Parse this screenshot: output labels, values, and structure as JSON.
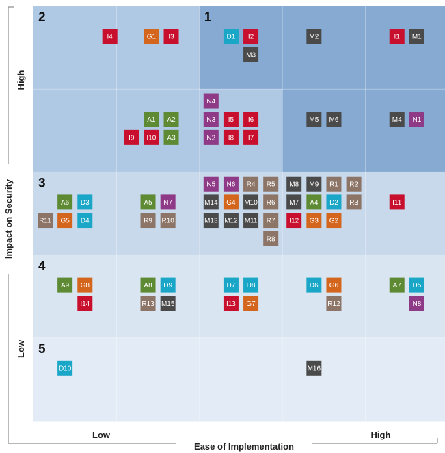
{
  "chart_data": {
    "type": "table",
    "x_axis": {
      "title": "Ease of Implementation",
      "low_label": "Low",
      "high_label": "High"
    },
    "y_axis": {
      "title": "Impact on Security",
      "low_label": "Low",
      "high_label": "High"
    },
    "zones": [
      {
        "label": "1",
        "row": 0,
        "col": 2
      },
      {
        "label": "2",
        "row": 0,
        "col": 0
      },
      {
        "label": "3",
        "row": 2,
        "col": 0
      },
      {
        "label": "4",
        "row": 3,
        "col": 0
      },
      {
        "label": "5",
        "row": 4,
        "col": 0
      }
    ],
    "category_colors": {
      "I": "#c8102e",
      "G": "#d4651c",
      "D": "#1aa6c6",
      "M": "#4a4a4a",
      "N": "#8e3a86",
      "A": "#5e8a34",
      "R": "#8c7466"
    },
    "items": [
      {
        "label": "I4",
        "cat": "I",
        "row": 0,
        "col": 0.92
      },
      {
        "label": "G1",
        "cat": "G",
        "row": 0,
        "col": 1.42
      },
      {
        "label": "I3",
        "cat": "I",
        "row": 0,
        "col": 1.66
      },
      {
        "label": "D1",
        "cat": "D",
        "row": 0,
        "col": 2.38
      },
      {
        "label": "I2",
        "cat": "I",
        "row": 0,
        "col": 2.62
      },
      {
        "label": "M3",
        "cat": "M",
        "row": 0.22,
        "col": 2.62
      },
      {
        "label": "M2",
        "cat": "M",
        "row": 0,
        "col": 3.38
      },
      {
        "label": "I1",
        "cat": "I",
        "row": 0,
        "col": 4.38
      },
      {
        "label": "M1",
        "cat": "M",
        "row": 0,
        "col": 4.62
      },
      {
        "label": "N4",
        "cat": "N",
        "row": 0.78,
        "col": 2.14
      },
      {
        "label": "A1",
        "cat": "A",
        "row": 1.0,
        "col": 1.42
      },
      {
        "label": "A2",
        "cat": "A",
        "row": 1.0,
        "col": 1.66
      },
      {
        "label": "N3",
        "cat": "N",
        "row": 1.0,
        "col": 2.14
      },
      {
        "label": "I5",
        "cat": "I",
        "row": 1.0,
        "col": 2.38
      },
      {
        "label": "I6",
        "cat": "I",
        "row": 1.0,
        "col": 2.62
      },
      {
        "label": "M5",
        "cat": "M",
        "row": 1.0,
        "col": 3.38
      },
      {
        "label": "M6",
        "cat": "M",
        "row": 1.0,
        "col": 3.62
      },
      {
        "label": "M4",
        "cat": "M",
        "row": 1.0,
        "col": 4.38
      },
      {
        "label": "N1",
        "cat": "N",
        "row": 1.0,
        "col": 4.62
      },
      {
        "label": "I9",
        "cat": "I",
        "row": 1.22,
        "col": 1.18
      },
      {
        "label": "I10",
        "cat": "I",
        "row": 1.22,
        "col": 1.42
      },
      {
        "label": "A3",
        "cat": "A",
        "row": 1.22,
        "col": 1.66
      },
      {
        "label": "N2",
        "cat": "N",
        "row": 1.22,
        "col": 2.14
      },
      {
        "label": "I8",
        "cat": "I",
        "row": 1.22,
        "col": 2.38
      },
      {
        "label": "I7",
        "cat": "I",
        "row": 1.22,
        "col": 2.62
      },
      {
        "label": "N5",
        "cat": "N",
        "row": 1.78,
        "col": 2.14
      },
      {
        "label": "N6",
        "cat": "N",
        "row": 1.78,
        "col": 2.38
      },
      {
        "label": "R4",
        "cat": "R",
        "row": 1.78,
        "col": 2.62
      },
      {
        "label": "R5",
        "cat": "R",
        "row": 1.78,
        "col": 2.86
      },
      {
        "label": "M8",
        "cat": "M",
        "row": 1.78,
        "col": 3.14
      },
      {
        "label": "M9",
        "cat": "M",
        "row": 1.78,
        "col": 3.38
      },
      {
        "label": "R1",
        "cat": "R",
        "row": 1.78,
        "col": 3.62
      },
      {
        "label": "R2",
        "cat": "R",
        "row": 1.78,
        "col": 3.86
      },
      {
        "label": "A6",
        "cat": "A",
        "row": 2.0,
        "col": 0.38
      },
      {
        "label": "D3",
        "cat": "D",
        "row": 2.0,
        "col": 0.62
      },
      {
        "label": "A5",
        "cat": "A",
        "row": 2.0,
        "col": 1.38
      },
      {
        "label": "N7",
        "cat": "N",
        "row": 2.0,
        "col": 1.62
      },
      {
        "label": "M14",
        "cat": "M",
        "row": 2.0,
        "col": 2.14
      },
      {
        "label": "G4",
        "cat": "G",
        "row": 2.0,
        "col": 2.38
      },
      {
        "label": "M10",
        "cat": "M",
        "row": 2.0,
        "col": 2.62
      },
      {
        "label": "R6",
        "cat": "R",
        "row": 2.0,
        "col": 2.86
      },
      {
        "label": "M7",
        "cat": "M",
        "row": 2.0,
        "col": 3.14
      },
      {
        "label": "A4",
        "cat": "A",
        "row": 2.0,
        "col": 3.38
      },
      {
        "label": "D2",
        "cat": "D",
        "row": 2.0,
        "col": 3.62
      },
      {
        "label": "R3",
        "cat": "R",
        "row": 2.0,
        "col": 3.86
      },
      {
        "label": "I11",
        "cat": "I",
        "row": 2.0,
        "col": 4.38
      },
      {
        "label": "R11",
        "cat": "R",
        "row": 2.22,
        "col": 0.14
      },
      {
        "label": "G5",
        "cat": "G",
        "row": 2.22,
        "col": 0.38
      },
      {
        "label": "D4",
        "cat": "D",
        "row": 2.22,
        "col": 0.62
      },
      {
        "label": "R9",
        "cat": "R",
        "row": 2.22,
        "col": 1.38
      },
      {
        "label": "R10",
        "cat": "R",
        "row": 2.22,
        "col": 1.62
      },
      {
        "label": "M13",
        "cat": "M",
        "row": 2.22,
        "col": 2.14
      },
      {
        "label": "M12",
        "cat": "M",
        "row": 2.22,
        "col": 2.38
      },
      {
        "label": "M11",
        "cat": "M",
        "row": 2.22,
        "col": 2.62
      },
      {
        "label": "R7",
        "cat": "R",
        "row": 2.22,
        "col": 2.86
      },
      {
        "label": "I12",
        "cat": "I",
        "row": 2.22,
        "col": 3.14
      },
      {
        "label": "G3",
        "cat": "G",
        "row": 2.22,
        "col": 3.38
      },
      {
        "label": "G2",
        "cat": "G",
        "row": 2.22,
        "col": 3.62
      },
      {
        "label": "R8",
        "cat": "R",
        "row": 2.44,
        "col": 2.86
      },
      {
        "label": "A9",
        "cat": "A",
        "row": 3.0,
        "col": 0.38
      },
      {
        "label": "G8",
        "cat": "G",
        "row": 3.0,
        "col": 0.62
      },
      {
        "label": "A8",
        "cat": "A",
        "row": 3.0,
        "col": 1.38
      },
      {
        "label": "D9",
        "cat": "D",
        "row": 3.0,
        "col": 1.62
      },
      {
        "label": "D7",
        "cat": "D",
        "row": 3.0,
        "col": 2.38
      },
      {
        "label": "D8",
        "cat": "D",
        "row": 3.0,
        "col": 2.62
      },
      {
        "label": "D6",
        "cat": "D",
        "row": 3.0,
        "col": 3.38
      },
      {
        "label": "G6",
        "cat": "G",
        "row": 3.0,
        "col": 3.62
      },
      {
        "label": "A7",
        "cat": "A",
        "row": 3.0,
        "col": 4.38
      },
      {
        "label": "D5",
        "cat": "D",
        "row": 3.0,
        "col": 4.62
      },
      {
        "label": "I14",
        "cat": "I",
        "row": 3.22,
        "col": 0.62
      },
      {
        "label": "R13",
        "cat": "R",
        "row": 3.22,
        "col": 1.38
      },
      {
        "label": "M15",
        "cat": "M",
        "row": 3.22,
        "col": 1.62
      },
      {
        "label": "I13",
        "cat": "I",
        "row": 3.22,
        "col": 2.38
      },
      {
        "label": "G7",
        "cat": "G",
        "row": 3.22,
        "col": 2.62
      },
      {
        "label": "R12",
        "cat": "R",
        "row": 3.22,
        "col": 3.62
      },
      {
        "label": "N8",
        "cat": "N",
        "row": 3.22,
        "col": 4.62
      },
      {
        "label": "D10",
        "cat": "D",
        "row": 4.0,
        "col": 0.38
      },
      {
        "label": "M16",
        "cat": "M",
        "row": 4.0,
        "col": 3.38
      }
    ]
  }
}
